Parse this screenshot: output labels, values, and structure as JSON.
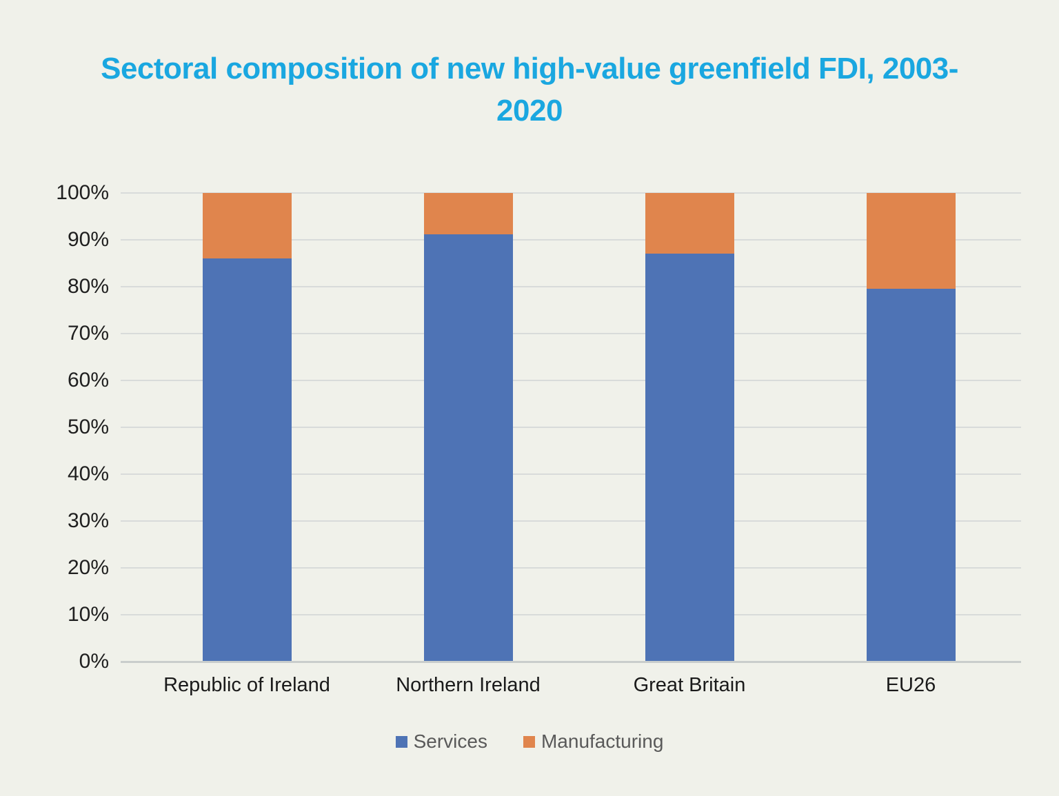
{
  "page": {
    "background_color": "#f0f1ea"
  },
  "title": {
    "text": "Sectoral composition of new high-value greenfield FDI, 2003-2020",
    "color": "#1aa7e0"
  },
  "chart_data": {
    "type": "bar",
    "stacked": true,
    "title": "Sectoral composition of new high-value greenfield FDI, 2003-2020",
    "categories": [
      "Republic of Ireland",
      "Northern Ireland",
      "Great Britain",
      "EU26"
    ],
    "series": [
      {
        "name": "Services",
        "color": "#4e73b5",
        "values": [
          86,
          91.2,
          87,
          79.6
        ]
      },
      {
        "name": "Manufacturing",
        "color": "#e0854d",
        "values": [
          14,
          8.8,
          13,
          20.4
        ]
      }
    ],
    "xlabel": "",
    "ylabel": "",
    "ylim": [
      0,
      100
    ],
    "ytick_step": 10,
    "yticks": [
      "0%",
      "10%",
      "20%",
      "30%",
      "40%",
      "50%",
      "60%",
      "70%",
      "80%",
      "90%",
      "100%"
    ],
    "grid": true,
    "gridline_color": "#d8dbda",
    "axis_line_color": "#c9cdcc",
    "legend_position": "bottom"
  },
  "legend": {
    "items": [
      {
        "label": "Services",
        "color": "#4e73b5"
      },
      {
        "label": "Manufacturing",
        "color": "#e0854d"
      }
    ]
  }
}
